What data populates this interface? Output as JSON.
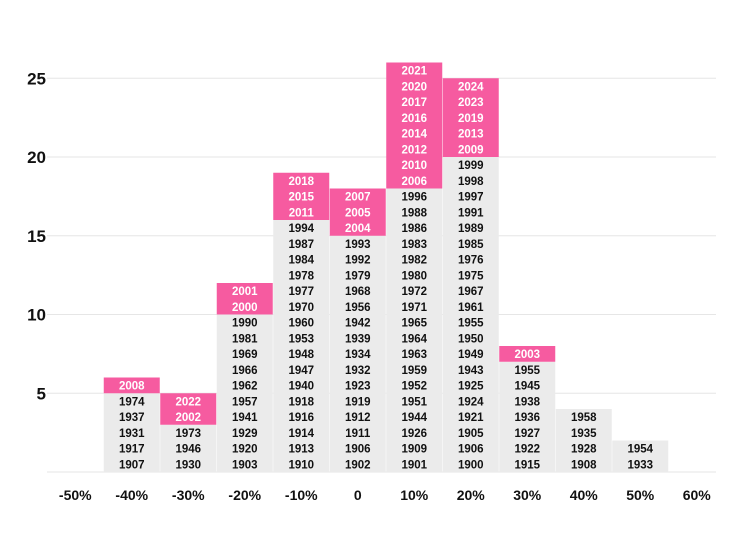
{
  "chart_data": {
    "type": "histogram",
    "bins": [
      {
        "label": "-50%",
        "years": []
      },
      {
        "label": "-40%",
        "years": [
          "1907",
          "1917",
          "1931",
          "1937",
          "1974",
          "2008"
        ]
      },
      {
        "label": "-30%",
        "years": [
          "1930",
          "1946",
          "1973",
          "2002",
          "2022"
        ]
      },
      {
        "label": "-20%",
        "years": [
          "1903",
          "1920",
          "1929",
          "1941",
          "1957",
          "1962",
          "1966",
          "1969",
          "1981",
          "1990",
          "2000",
          "2001"
        ]
      },
      {
        "label": "-10%",
        "years": [
          "1910",
          "1913",
          "1914",
          "1916",
          "1918",
          "1940",
          "1947",
          "1948",
          "1953",
          "1960",
          "1970",
          "1977",
          "1978",
          "1984",
          "1987",
          "1994",
          "2011",
          "2015",
          "2018"
        ]
      },
      {
        "label": "0",
        "years": [
          "1902",
          "1906",
          "1911",
          "1912",
          "1919",
          "1923",
          "1932",
          "1934",
          "1939",
          "1942",
          "1956",
          "1968",
          "1979",
          "1992",
          "1993",
          "2004",
          "2005",
          "2007"
        ]
      },
      {
        "label": "10%",
        "years": [
          "1901",
          "1909",
          "1926",
          "1944",
          "1951",
          "1952",
          "1959",
          "1963",
          "1964",
          "1965",
          "1971",
          "1972",
          "1980",
          "1982",
          "1983",
          "1986",
          "1988",
          "1996",
          "2006",
          "2010",
          "2012",
          "2014",
          "2016",
          "2017",
          "2020",
          "2021"
        ]
      },
      {
        "label": "20%",
        "years": [
          "1900",
          "1906",
          "1905",
          "1921",
          "1924",
          "1925",
          "1943",
          "1949",
          "1950",
          "1955",
          "1961",
          "1967",
          "1975",
          "1976",
          "1985",
          "1989",
          "1991",
          "1997",
          "1998",
          "1999",
          "2009",
          "2013",
          "2019",
          "2023",
          "2024"
        ]
      },
      {
        "label": "30%",
        "years": [
          "1915",
          "1922",
          "1927",
          "1936",
          "1938",
          "1945",
          "1955",
          "2003"
        ]
      },
      {
        "label": "40%",
        "years": [
          "1908",
          "1928",
          "1935",
          "1958"
        ]
      },
      {
        "label": "50%",
        "years": [
          "1933",
          "1954"
        ]
      },
      {
        "label": "60%",
        "years": []
      }
    ],
    "highlight_from_year": 2000,
    "x_ticks": [
      "-50%",
      "-40%",
      "-30%",
      "-20%",
      "-10%",
      "0",
      "10%",
      "20%",
      "30%",
      "40%",
      "50%",
      "60%"
    ],
    "y_ticks": [
      5,
      10,
      15,
      20,
      25
    ],
    "ylim": [
      0,
      27
    ],
    "grid": true,
    "colors": {
      "highlight": "#f65ba0",
      "base": "#ebebeb",
      "grid": "#e6e6e6",
      "text": "#111111",
      "highlight_text": "#ffffff"
    }
  }
}
